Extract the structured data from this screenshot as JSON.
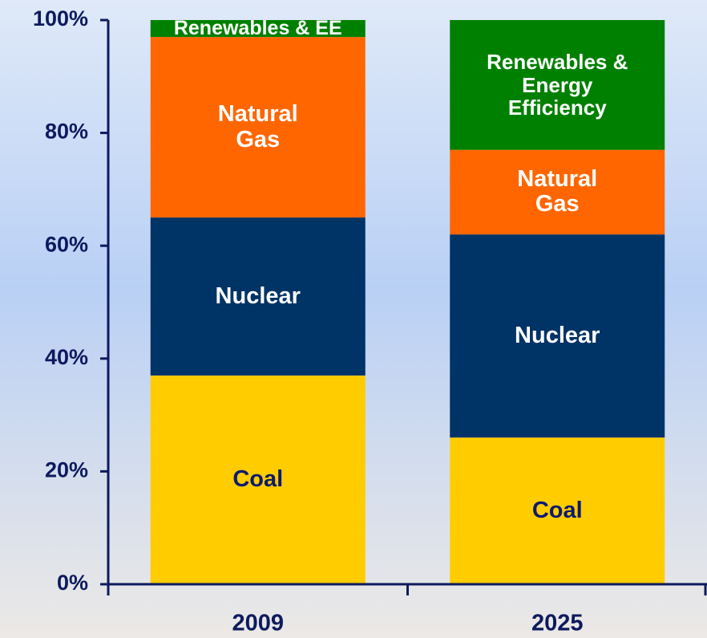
{
  "chart_data": {
    "type": "stacked_bar",
    "categories": [
      "2009",
      "2025"
    ],
    "series": [
      {
        "name": "Coal",
        "labels": [
          "Coal",
          "Coal"
        ],
        "color": "#ffcc00",
        "text_color": "#0d1a6e",
        "values": [
          37,
          26
        ]
      },
      {
        "name": "Nuclear",
        "labels": [
          "Nuclear",
          "Nuclear"
        ],
        "color": "#003366",
        "text_color": "#ffffff",
        "values": [
          28,
          36
        ]
      },
      {
        "name": "Natural Gas",
        "labels": [
          "Natural Gas",
          "Natural Gas"
        ],
        "color": "#ff6600",
        "text_color": "#ffffff",
        "values": [
          32,
          15
        ]
      },
      {
        "name": "Renewables & EE",
        "labels": [
          "Renewables & EE",
          "Renewables & Energy Efficiency"
        ],
        "color": "#008000",
        "text_color": "#ffffff",
        "values": [
          3,
          23
        ]
      }
    ],
    "ylim": [
      0,
      100
    ],
    "yticks": [
      {
        "value": 0,
        "label": "0%"
      },
      {
        "value": 20,
        "label": "20%"
      },
      {
        "value": 40,
        "label": "40%"
      },
      {
        "value": 60,
        "label": "60%"
      },
      {
        "value": 80,
        "label": "80%"
      },
      {
        "value": 100,
        "label": "100%"
      }
    ],
    "grid": false
  }
}
